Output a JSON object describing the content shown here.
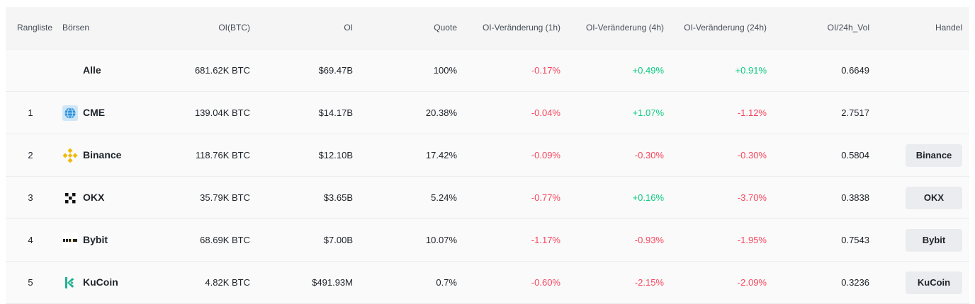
{
  "headers": {
    "rank": "Rangliste",
    "exchange": "Börsen",
    "oi_btc": "OI(BTC)",
    "oi": "OI",
    "share": "Quote",
    "change_1h": "OI-Veränderung (1h)",
    "change_4h": "OI-Veränderung (4h)",
    "change_24h": "OI-Veränderung (24h)",
    "oi_vol": "OI/24h_Vol",
    "trade": "Handel"
  },
  "rows": [
    {
      "rank": "",
      "exchange": "Alle",
      "logo": "",
      "oi_btc": "681.62K BTC",
      "oi": "$69.47B",
      "share": "100%",
      "change_1h": "-0.17%",
      "change_4h": "+0.49%",
      "change_24h": "+0.91%",
      "oi_vol": "0.6649",
      "trade": ""
    },
    {
      "rank": "1",
      "exchange": "CME",
      "logo": "cme-globe-icon",
      "oi_btc": "139.04K BTC",
      "oi": "$14.17B",
      "share": "20.38%",
      "change_1h": "-0.04%",
      "change_4h": "+1.07%",
      "change_24h": "-1.12%",
      "oi_vol": "2.7517",
      "trade": ""
    },
    {
      "rank": "2",
      "exchange": "Binance",
      "logo": "binance-logo-icon",
      "oi_btc": "118.76K BTC",
      "oi": "$12.10B",
      "share": "17.42%",
      "change_1h": "-0.09%",
      "change_4h": "-0.30%",
      "change_24h": "-0.30%",
      "oi_vol": "0.5804",
      "trade": "Binance"
    },
    {
      "rank": "3",
      "exchange": "OKX",
      "logo": "okx-logo-icon",
      "oi_btc": "35.79K BTC",
      "oi": "$3.65B",
      "share": "5.24%",
      "change_1h": "-0.77%",
      "change_4h": "+0.16%",
      "change_24h": "-3.70%",
      "oi_vol": "0.3838",
      "trade": "OKX"
    },
    {
      "rank": "4",
      "exchange": "Bybit",
      "logo": "bybit-logo-icon",
      "oi_btc": "68.69K BTC",
      "oi": "$7.00B",
      "share": "10.07%",
      "change_1h": "-1.17%",
      "change_4h": "-0.93%",
      "change_24h": "-1.95%",
      "oi_vol": "0.7543",
      "trade": "Bybit"
    },
    {
      "rank": "5",
      "exchange": "KuCoin",
      "logo": "kucoin-logo-icon",
      "oi_btc": "4.82K BTC",
      "oi": "$491.93M",
      "share": "0.7%",
      "change_1h": "-0.60%",
      "change_4h": "-2.15%",
      "change_24h": "-2.09%",
      "oi_vol": "0.3236",
      "trade": "KuCoin"
    }
  ],
  "colors": {
    "positive": "#0ecb81",
    "negative": "#f6465d",
    "binance": "#f0b90b",
    "kucoin": "#23af91",
    "cme": "#2e8fd6"
  }
}
